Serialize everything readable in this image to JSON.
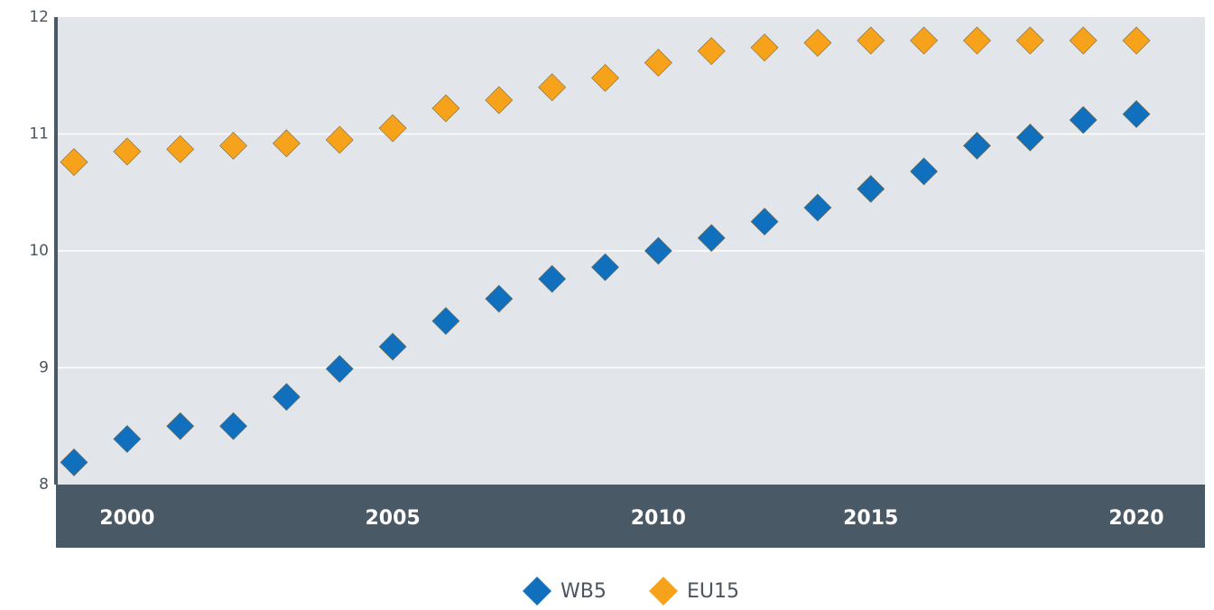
{
  "chart_data": {
    "type": "scatter",
    "categories": [
      null,
      "2000",
      null,
      null,
      null,
      null,
      "2005",
      null,
      null,
      null,
      null,
      "2010",
      null,
      null,
      null,
      "2015",
      null,
      null,
      null,
      null,
      "2020"
    ],
    "series": [
      {
        "name": "WB5",
        "color": "#1070bd",
        "values": [
          8.19,
          8.39,
          8.5,
          8.5,
          8.75,
          8.99,
          9.18,
          9.4,
          9.59,
          9.76,
          9.86,
          10.0,
          10.11,
          10.25,
          10.37,
          10.53,
          10.68,
          10.9,
          10.97,
          11.12,
          11.17
        ]
      },
      {
        "name": "EU15",
        "color": "#f7a21b",
        "values": [
          10.76,
          10.85,
          10.87,
          10.9,
          10.92,
          10.95,
          11.05,
          11.22,
          11.29,
          11.4,
          11.48,
          11.61,
          11.71,
          11.74,
          11.78,
          11.8,
          11.8,
          11.8,
          11.8,
          11.8,
          11.8
        ]
      }
    ],
    "ylim": [
      8,
      12
    ],
    "yticks": [
      8,
      9,
      10,
      11,
      12
    ],
    "grid": true,
    "legend": "bottom"
  }
}
